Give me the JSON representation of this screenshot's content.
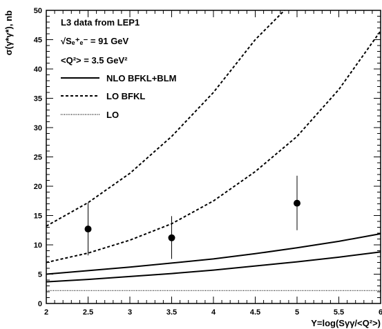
{
  "chart_data": {
    "type": "line",
    "title": "",
    "xlabel": "Y=log(Sγγ/<Q²>)",
    "ylabel": "σ(γ*γ*), nb",
    "xlim": [
      2,
      6
    ],
    "ylim": [
      0,
      50
    ],
    "x_ticks": [
      "2",
      "2.5",
      "3",
      "3.5",
      "4",
      "4.5",
      "5",
      "5.5",
      "6"
    ],
    "y_ticks": [
      "0",
      "5",
      "10",
      "15",
      "20",
      "25",
      "30",
      "35",
      "40",
      "45",
      "50"
    ],
    "grid": false,
    "annotations": [
      "L3 data from LEP1",
      "√Sₑ⁺ₑ⁻ = 91 GeV",
      "<Q²> = 3.5 GeV²"
    ],
    "legend": [
      {
        "label": "NLO BFKL+BLM",
        "style": "solid"
      },
      {
        "label": "LO BFKL",
        "style": "dashed"
      },
      {
        "label": "LO",
        "style": "dotted"
      }
    ],
    "data_points": [
      {
        "x": 2.5,
        "y": 12.7,
        "y_low": 8.2,
        "y_high": 17.2
      },
      {
        "x": 3.5,
        "y": 11.2,
        "y_low": 7.6,
        "y_high": 14.9
      },
      {
        "x": 5.0,
        "y": 17.1,
        "y_low": 12.5,
        "y_high": 21.8
      }
    ],
    "curves": [
      {
        "style": "solid",
        "x": [
          2,
          2.5,
          3,
          3.5,
          4,
          4.5,
          5,
          5.5,
          6
        ],
        "y": [
          5.0,
          5.6,
          6.2,
          6.9,
          7.6,
          8.5,
          9.5,
          10.6,
          11.9
        ]
      },
      {
        "style": "solid",
        "x": [
          2,
          2.5,
          3,
          3.5,
          4,
          4.5,
          5,
          5.5,
          6
        ],
        "y": [
          3.7,
          4.1,
          4.6,
          5.1,
          5.7,
          6.4,
          7.1,
          7.9,
          8.8
        ]
      },
      {
        "style": "dashed",
        "x": [
          2,
          2.5,
          3,
          3.5,
          4,
          4.5,
          4.85
        ],
        "y": [
          13.2,
          17.2,
          22.2,
          28.5,
          36.0,
          45.0,
          50.0
        ]
      },
      {
        "style": "dashed",
        "x": [
          2,
          2.5,
          3,
          3.5,
          4,
          4.5,
          5,
          5.5,
          6
        ],
        "y": [
          7.0,
          8.6,
          10.8,
          13.6,
          17.5,
          22.5,
          28.5,
          36.5,
          46.5
        ]
      },
      {
        "style": "dotted",
        "x": [
          2,
          6
        ],
        "y": [
          2.2,
          2.2
        ]
      }
    ]
  }
}
